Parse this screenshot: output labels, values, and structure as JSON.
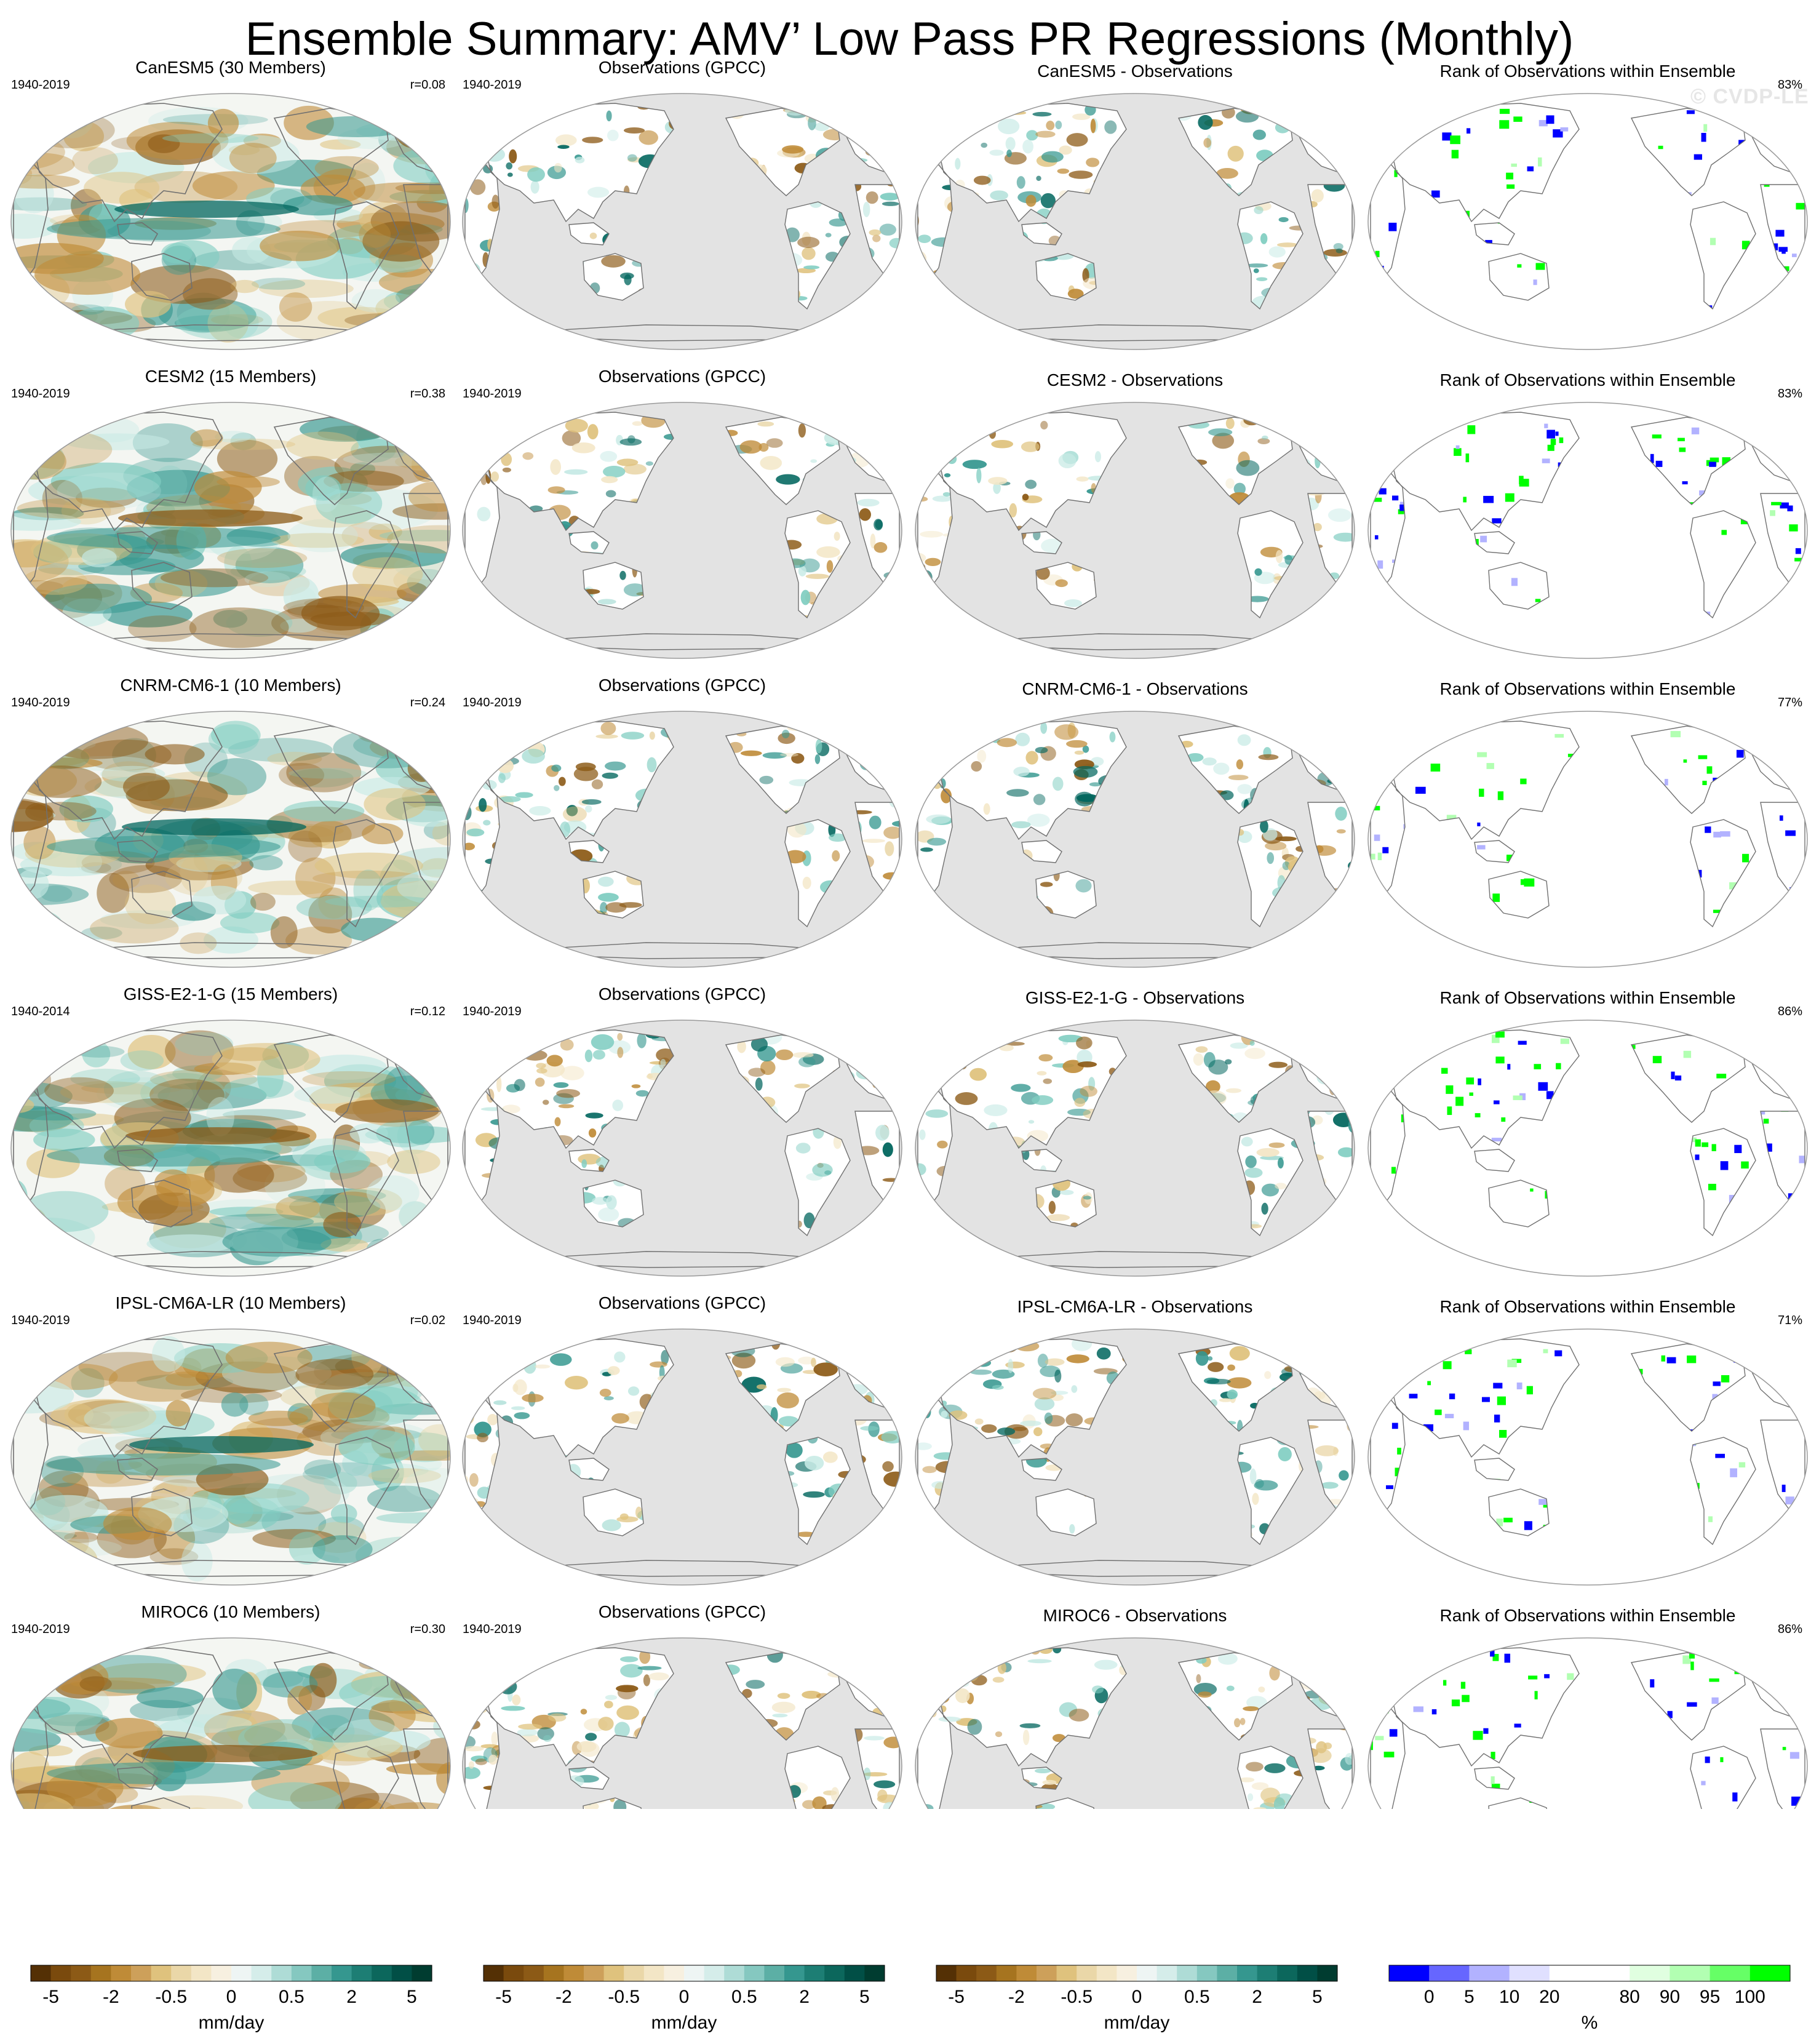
{
  "title": "Ensemble Summary: AMV’ Low Pass PR Regressions (Monthly)",
  "watermark": "© CVDP-LE",
  "chart_data": {
    "type": "heatmap",
    "projection": "Robinson (global, Pacific-centered)",
    "grid": "4 columns x 6 rows of map panels",
    "colors": {
      "map_background": "#ffffff",
      "masked_ocean": "#e3e3e3",
      "coastline": "#707070",
      "rank_low": "#0000ff",
      "rank_high": "#00ff00"
    },
    "rows": [
      {
        "model": "CanESM5",
        "ensemble": {
          "title": "CanESM5 (30 Members)",
          "period": "1940-2019",
          "pattern_corr": "r=0.08"
        },
        "observations": {
          "title": "Observations (GPCC)",
          "period": "1940-2019"
        },
        "difference": {
          "title": "CanESM5 - Observations"
        },
        "rank": {
          "title": "Rank of Observations within Ensemble",
          "percent": "83%"
        }
      },
      {
        "model": "CESM2",
        "ensemble": {
          "title": "CESM2 (15 Members)",
          "period": "1940-2019",
          "pattern_corr": "r=0.38"
        },
        "observations": {
          "title": "Observations (GPCC)",
          "period": "1940-2019"
        },
        "difference": {
          "title": "CESM2 - Observations"
        },
        "rank": {
          "title": "Rank of Observations within Ensemble",
          "percent": "83%"
        }
      },
      {
        "model": "CNRM-CM6-1",
        "ensemble": {
          "title": "CNRM-CM6-1 (10 Members)",
          "period": "1940-2019",
          "pattern_corr": "r=0.24"
        },
        "observations": {
          "title": "Observations (GPCC)",
          "period": "1940-2019"
        },
        "difference": {
          "title": "CNRM-CM6-1 - Observations"
        },
        "rank": {
          "title": "Rank of Observations within Ensemble",
          "percent": "77%"
        }
      },
      {
        "model": "GISS-E2-1-G",
        "ensemble": {
          "title": "GISS-E2-1-G (15 Members)",
          "period": "1940-2014",
          "pattern_corr": "r=0.12"
        },
        "observations": {
          "title": "Observations (GPCC)",
          "period": "1940-2019"
        },
        "difference": {
          "title": "GISS-E2-1-G - Observations"
        },
        "rank": {
          "title": "Rank of Observations within Ensemble",
          "percent": "86%"
        }
      },
      {
        "model": "IPSL-CM6A-LR",
        "ensemble": {
          "title": "IPSL-CM6A-LR (10 Members)",
          "period": "1940-2019",
          "pattern_corr": "r=0.02"
        },
        "observations": {
          "title": "Observations (GPCC)",
          "period": "1940-2019"
        },
        "difference": {
          "title": "IPSL-CM6A-LR - Observations"
        },
        "rank": {
          "title": "Rank of Observations within Ensemble",
          "percent": "71%"
        }
      },
      {
        "model": "MIROC6",
        "ensemble": {
          "title": "MIROC6 (10 Members)",
          "period": "1940-2019",
          "pattern_corr": "r=0.30"
        },
        "observations": {
          "title": "Observations (GPCC)",
          "period": "1940-2019"
        },
        "difference": {
          "title": "MIROC6 - Observations"
        },
        "rank": {
          "title": "Rank of Observations within Ensemble",
          "percent": "86%"
        }
      }
    ],
    "colorbars": [
      {
        "id": "ensemble",
        "units": "mm/day",
        "tick_labels": [
          "-5",
          "-2",
          "-0.5",
          "0",
          "0.5",
          "2",
          "5"
        ],
        "colors": [
          "#543005",
          "#7a4a0d",
          "#8c5a16",
          "#a6741f",
          "#bf8b37",
          "#cda05a",
          "#dfc27d",
          "#ead7a8",
          "#f3e6c6",
          "#f7f0e0",
          "#eef5f4",
          "#d5edea",
          "#aedcd6",
          "#85c8c0",
          "#5cafa5",
          "#35978f",
          "#1d7e74",
          "#0c675c",
          "#014f46",
          "#003c30"
        ]
      },
      {
        "id": "observations",
        "units": "mm/day",
        "tick_labels": [
          "-5",
          "-2",
          "-0.5",
          "0",
          "0.5",
          "2",
          "5"
        ],
        "colors": [
          "#543005",
          "#7a4a0d",
          "#8c5a16",
          "#a6741f",
          "#bf8b37",
          "#cda05a",
          "#dfc27d",
          "#ead7a8",
          "#f3e6c6",
          "#f7f0e0",
          "#eef5f4",
          "#d5edea",
          "#aedcd6",
          "#85c8c0",
          "#5cafa5",
          "#35978f",
          "#1d7e74",
          "#0c675c",
          "#014f46",
          "#003c30"
        ]
      },
      {
        "id": "difference",
        "units": "mm/day",
        "tick_labels": [
          "-5",
          "-2",
          "-0.5",
          "0",
          "0.5",
          "2",
          "5"
        ],
        "colors": [
          "#543005",
          "#7a4a0d",
          "#8c5a16",
          "#a6741f",
          "#bf8b37",
          "#cda05a",
          "#dfc27d",
          "#ead7a8",
          "#f3e6c6",
          "#f7f0e0",
          "#eef5f4",
          "#d5edea",
          "#aedcd6",
          "#85c8c0",
          "#5cafa5",
          "#35978f",
          "#1d7e74",
          "#0c675c",
          "#014f46",
          "#003c30"
        ]
      },
      {
        "id": "rank",
        "units": "%",
        "tick_labels": [
          "0",
          "5",
          "10",
          "20",
          "80",
          "90",
          "95",
          "100"
        ],
        "colors": [
          "#0000ff",
          "#6666ff",
          "#b2b2ff",
          "#e0e0ff",
          "#ffffff",
          "#ffffff",
          "#e0ffe0",
          "#b2ffb2",
          "#66ff66",
          "#00ff00"
        ]
      }
    ]
  }
}
